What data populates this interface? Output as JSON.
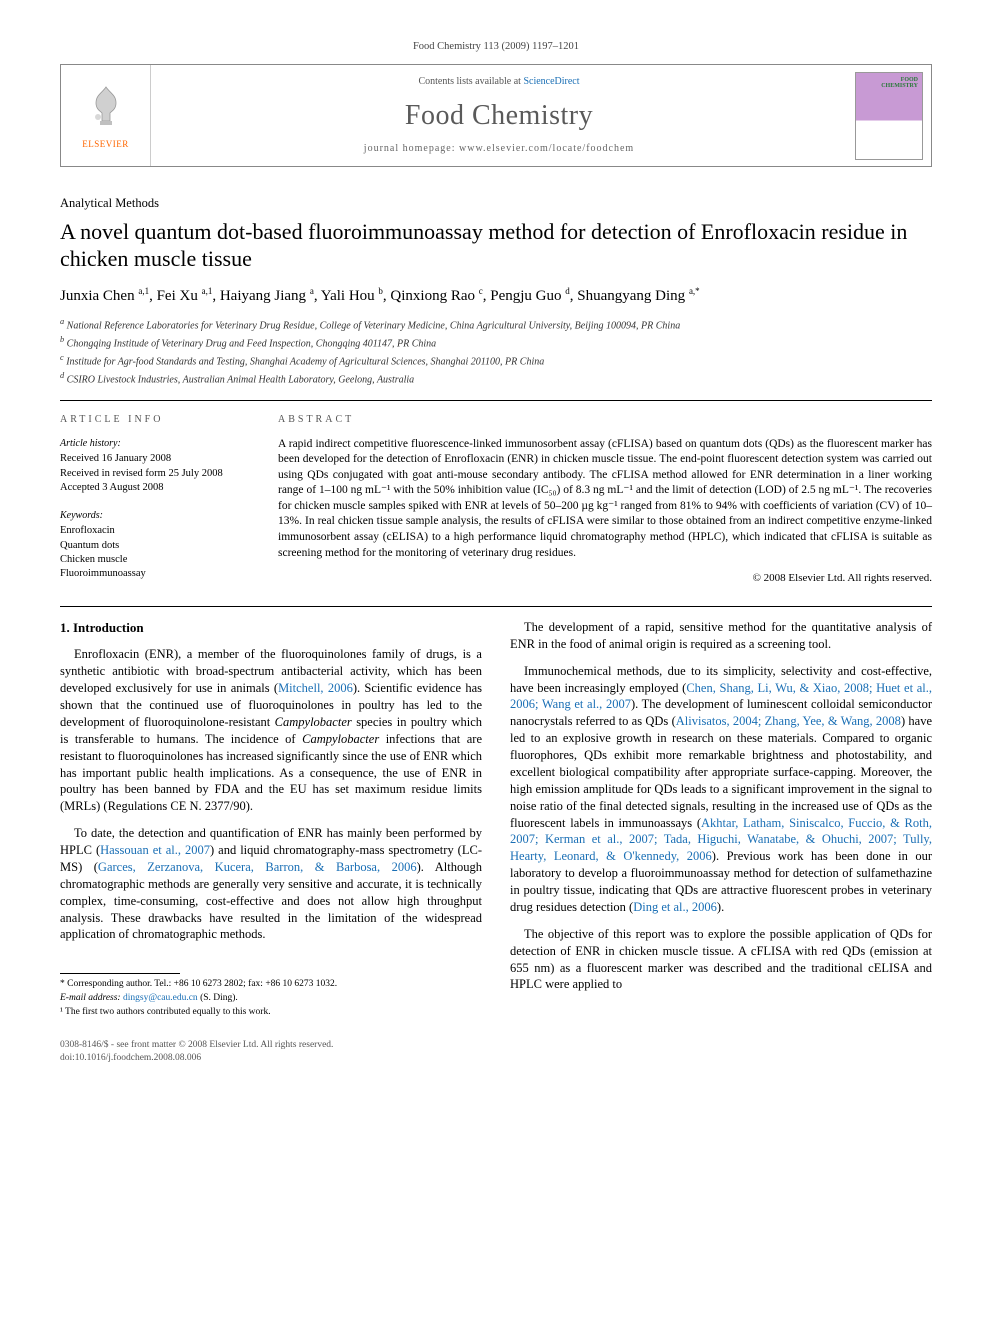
{
  "journal_ref": "Food Chemistry 113 (2009) 1197–1201",
  "header": {
    "contents_prefix": "Contents lists available at ",
    "contents_link": "ScienceDirect",
    "journal_name": "Food Chemistry",
    "homepage_prefix": "journal homepage: ",
    "homepage_url": "www.elsevier.com/locate/foodchem",
    "publisher": "ELSEVIER"
  },
  "article": {
    "section": "Analytical Methods",
    "title": "A novel quantum dot-based fluoroimmunoassay method for detection of Enrofloxacin residue in chicken muscle tissue",
    "authors_html": "Junxia Chen <sup>a,1</sup>, Fei Xu <sup>a,1</sup>, Haiyang Jiang <sup>a</sup>, Yali Hou <sup>b</sup>, Qinxiong Rao <sup>c</sup>, Pengju Guo <sup>d</sup>, Shuangyang Ding <sup>a,*</sup>",
    "affiliations": {
      "a": "National Reference Laboratories for Veterinary Drug Residue, College of Veterinary Medicine, China Agricultural University, Beijing 100094, PR China",
      "b": "Chongqing Institude of Veterinary Drug and Feed Inspection, Chongqing 401147, PR China",
      "c": "Institude for Agr-food Standards and Testing, Shanghai Academy of Agricultural Sciences, Shanghai 201100, PR China",
      "d": "CSIRO Livestock Industries, Australian Animal Health Laboratory, Geelong, Australia"
    }
  },
  "info": {
    "article_info_head": "ARTICLE INFO",
    "abstract_head": "ABSTRACT",
    "history_label": "Article history:",
    "history": {
      "received": "Received 16 January 2008",
      "revised": "Received in revised form 25 July 2008",
      "accepted": "Accepted 3 August 2008"
    },
    "keywords_label": "Keywords:",
    "keywords": [
      "Enrofloxacin",
      "Quantum dots",
      "Chicken muscle",
      "Fluoroimmunoassay"
    ],
    "abstract": "A rapid indirect competitive fluorescence-linked immunosorbent assay (cFLISA) based on quantum dots (QDs) as the fluorescent marker has been developed for the detection of Enrofloxacin (ENR) in chicken muscle tissue. The end-point fluorescent detection system was carried out using QDs conjugated with goat anti-mouse secondary antibody. The cFLISA method allowed for ENR determination in a liner working range of 1–100 ng mL⁻¹ with the 50% inhibition value (IC₅₀) of 8.3 ng mL⁻¹ and the limit of detection (LOD) of 2.5 ng mL⁻¹. The recoveries for chicken muscle samples spiked with ENR at levels of 50–200 µg kg⁻¹ ranged from 81% to 94% with coefficients of variation (CV) of 10–13%. In real chicken tissue sample analysis, the results of cFLISA were similar to those obtained from an indirect competitive enzyme-linked immunosorbent assay (cELISA) to a high performance liquid chromatography method (HPLC), which indicated that cFLISA is suitable as screening method for the monitoring of veterinary drug residues.",
    "copyright": "© 2008 Elsevier Ltd. All rights reserved."
  },
  "body": {
    "intro_heading": "1. Introduction",
    "p1a": "Enrofloxacin (ENR), a member of the fluoroquinolones family of drugs, is a synthetic antibiotic with broad-spectrum antibacterial activity, which has been developed exclusively for use in animals (",
    "p1_ref1": "Mitchell, 2006",
    "p1b": "). Scientific evidence has shown that the continued use of fluoroquinolones in poultry has led to the development of fluoroquinolone-resistant ",
    "p1_species1": "Campylobacter",
    "p1c": " species in poultry which is transferable to humans. The incidence of ",
    "p1_species2": "Campylobacter",
    "p1d": " infections that are resistant to fluoroquinolones has increased significantly since the use of ENR which has important public health implications. As a consequence, the use of ENR in poultry has been banned by FDA and the EU has set maximum residue limits (MRLs) (Regulations CE N. 2377/90).",
    "p2a": "To date, the detection and quantification of ENR has mainly been performed by HPLC (",
    "p2_ref1": "Hassouan et al., 2007",
    "p2b": ") and liquid chromatography-mass spectrometry (LC-MS) (",
    "p2_ref2": "Garces, Zerzanova, Kucera, Barron, & Barbosa, 2006",
    "p2c": "). Although chromatographic methods are generally very sensitive and accurate, it is technically complex, time-consuming, cost-effective and does not allow high throughput analysis. These drawbacks have resulted in the limitation of the widespread application of chromatographic methods.",
    "p3": "The development of a rapid, sensitive method for the quantitative analysis of ENR in the food of animal origin is required as a screening tool.",
    "p4a": "Immunochemical methods, due to its simplicity, selectivity and cost-effective, have been increasingly employed (",
    "p4_ref1": "Chen, Shang, Li, Wu, & Xiao, 2008; Huet et al., 2006; Wang et al., 2007",
    "p4b": "). The development of luminescent colloidal semiconductor nanocrystals referred to as QDs (",
    "p4_ref2": "Alivisatos, 2004; Zhang, Yee, & Wang, 2008",
    "p4c": ") have led to an explosive growth in research on these materials. Compared to organic fluorophores, QDs exhibit more remarkable brightness and photostability, and excellent biological compatibility after appropriate surface-capping. Moreover, the high emission amplitude for QDs leads to a significant improvement in the signal to noise ratio of the final detected signals, resulting in the increased use of QDs as the fluorescent labels in immunoassays (",
    "p4_ref3": "Akhtar, Latham, Siniscalco, Fuccio, & Roth, 2007; Kerman et al., 2007; Tada, Higuchi, Wanatabe, & Ohuchi, 2007; Tully, Hearty, Leonard, & O'kennedy, 2006",
    "p4d": "). Previous work has been done in our laboratory to develop a fluoroimmunoassay method for detection of sulfamethazine in poultry tissue, indicating that QDs are attractive fluorescent probes in veterinary drug residues detection (",
    "p4_ref4": "Ding et al., 2006",
    "p4e": ").",
    "p5": "The objective of this report was to explore the possible application of QDs for detection of ENR in chicken muscle tissue. A cFLISA with red QDs (emission at 655 nm) as a fluorescent marker was described and the traditional cELISA and HPLC were applied to"
  },
  "footnotes": {
    "corr": "* Corresponding author. Tel.: +86 10 6273 2802; fax: +86 10 6273 1032.",
    "email_label": "E-mail address:",
    "email": "dingsy@cau.edu.cn",
    "email_suffix": "(S. Ding).",
    "note1": "¹ The first two authors contributed equally to this work."
  },
  "footer": {
    "left1": "0308-8146/$ - see front matter © 2008 Elsevier Ltd. All rights reserved.",
    "left2": "doi:10.1016/j.foodchem.2008.08.006"
  },
  "colors": {
    "link": "#1a6fb5",
    "orange": "#ff6600",
    "text": "#000000"
  }
}
